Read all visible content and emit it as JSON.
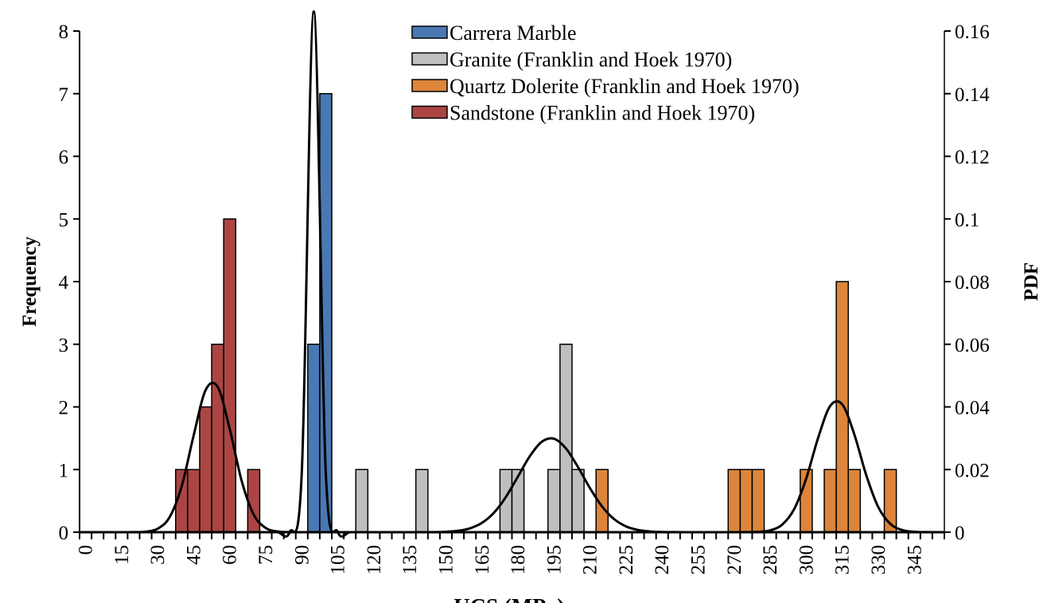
{
  "chart_data": {
    "type": "bar",
    "xlabel": "UCS (MPa)",
    "ylabel": "Frequency",
    "y2label": "PDF",
    "ylim": [
      0,
      8
    ],
    "y2lim": [
      0,
      0.16
    ],
    "yticks": [
      "0",
      "1",
      "2",
      "3",
      "4",
      "5",
      "6",
      "7",
      "8"
    ],
    "y2ticks": [
      "0",
      "0.02",
      "0.04",
      "0.06",
      "0.08",
      "0.1",
      "0.12",
      "0.14",
      "0.16"
    ],
    "categories_start": 0,
    "categories_step": 5,
    "categories_end": 355,
    "xtick_labels": [
      "0",
      "15",
      "30",
      "45",
      "60",
      "75",
      "90",
      "105",
      "120",
      "135",
      "150",
      "165",
      "180",
      "195",
      "210",
      "225",
      "240",
      "255",
      "270",
      "285",
      "300",
      "315",
      "330",
      "345"
    ],
    "legend_position": "top-center",
    "grid": false,
    "series": [
      {
        "name": "Carrera Marble",
        "color": "#4a78b2",
        "bins": {
          "95": 3,
          "100": 7
        },
        "pdf": {
          "mean": 95,
          "sd": 2.4
        }
      },
      {
        "name": "Granite (Franklin and Hoek 1970)",
        "color": "#bfbfbf",
        "bins": {
          "115": 1,
          "140": 1,
          "175": 1,
          "180": 1,
          "195": 1,
          "200": 3,
          "205": 1
        },
        "pdf": {
          "mean": 193.6,
          "sd": 13.3
        }
      },
      {
        "name": "Quartz Dolerite (Franklin and Hoek 1970)",
        "color": "#dd853a",
        "bins": {
          "215": 1,
          "270": 1,
          "275": 1,
          "280": 1,
          "300": 1,
          "310": 1,
          "315": 4,
          "320": 1,
          "335": 1
        },
        "pdf": {
          "mean": 312.7,
          "sd": 9.5
        }
      },
      {
        "name": "Sandstone (Franklin and Hoek 1970)",
        "color": "#ab4543",
        "bins": {
          "40": 1,
          "45": 1,
          "50": 2,
          "55": 3,
          "60": 5,
          "70": 1
        },
        "pdf": {
          "mean": 52.8,
          "sd": 8.3
        }
      }
    ]
  }
}
